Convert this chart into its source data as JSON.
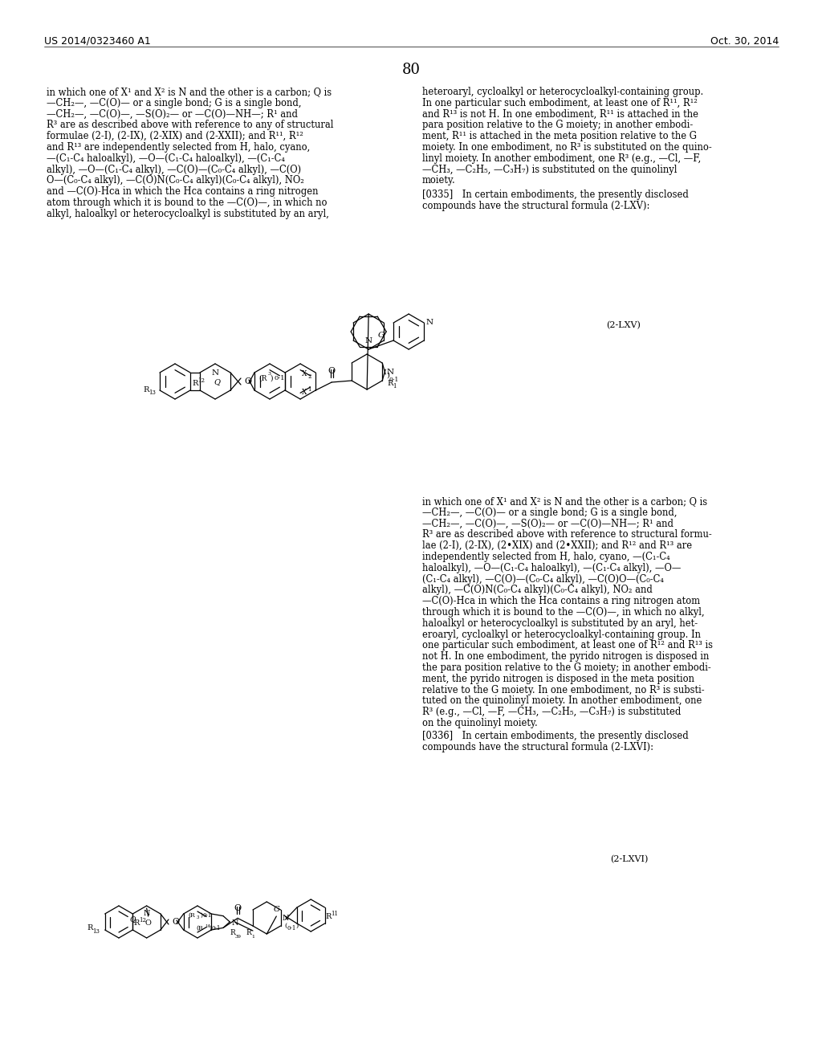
{
  "page_number": "80",
  "header_left": "US 2014/0323460 A1",
  "header_right": "Oct. 30, 2014",
  "background_color": "#ffffff",
  "left_col_text": [
    "in which one of X¹ and X² is N and the other is a carbon; Q is",
    "—CH₂—, —C(O)— or a single bond; G is a single bond,",
    "—CH₂—, —C(O)—, —S(O)₂— or —C(O)—NH—; R¹ and",
    "R³ are as described above with reference to any of structural",
    "formulae (2-I), (2-IX), (2-XIX) and (2-XXII); and R¹¹, R¹²",
    "and R¹³ are independently selected from H, halo, cyano,",
    "—(C₁-C₄ haloalkyl), —O—(C₁-C₄ haloalkyl), —(C₁-C₄",
    "alkyl), —O—(C₁-C₄ alkyl), —C(O)—(C₀-C₄ alkyl), —C(O)",
    "O—(C₀-C₄ alkyl), —C(O)N(C₀-C₄ alkyl)(C₀-C₄ alkyl), NO₂",
    "and —C(O)-Hca in which the Hca contains a ring nitrogen",
    "atom through which it is bound to the —C(O)—, in which no",
    "alkyl, haloalkyl or heterocycloalkyl is substituted by an aryl,"
  ],
  "right_col_text": [
    "heteroaryl, cycloalkyl or heterocycloalkyl-containing group.",
    "In one particular such embodiment, at least one of R¹¹, R¹²",
    "and R¹³ is not H. In one embodiment, R¹¹ is attached in the",
    "para position relative to the G moiety; in another embodi-",
    "ment, R¹¹ is attached in the meta position relative to the G",
    "moiety. In one embodiment, no R³ is substituted on the quino-",
    "linyl moiety. In another embodiment, one R³ (e.g., —Cl, —F,",
    "—CH₃, —C₂H₅, —C₃H₇) is substituted on the quinolinyl",
    "moiety."
  ],
  "paragraph_0335_1": "[0335] In certain embodiments, the presently disclosed",
  "paragraph_0335_2": "compounds have the structural formula (2-LXV):",
  "formula_label_1": "(2-LXV)",
  "right_col_lower": [
    "in which one of X¹ and X² is N and the other is a carbon; Q is",
    "—CH₂—, —C(O)— or a single bond; G is a single bond,",
    "—CH₂—, —C(O)—, —S(O)₂— or —C(O)—NH—; R¹ and",
    "R³ are as described above with reference to structural formu-",
    "lae (2-I), (2-IX), (2•XIX) and (2•XXII); and R¹² and R¹³ are",
    "independently selected from H, halo, cyano, —(C₁-C₄",
    "haloalkyl), —O—(C₁-C₄ haloalkyl), —(C₁-C₄ alkyl), —O—",
    "(C₁-C₄ alkyl), —C(O)—(C₀-C₄ alkyl), —C(O)O—(C₀-C₄",
    "alkyl), —C(O)N(C₀-C₄ alkyl)(C₀-C₄ alkyl), NO₂ and",
    "—C(O)-Hca in which the Hca contains a ring nitrogen atom",
    "through which it is bound to the —C(O)—, in which no alkyl,",
    "haloalkyl or heterocycloalkyl is substituted by an aryl, het-",
    "eroaryl, cycloalkyl or heterocycloalkyl-containing group. In",
    "one particular such embodiment, at least one of R¹² and R¹³ is"
  ],
  "right_col_lower2": [
    "not H. In one embodiment, the pyrido nitrogen is disposed in",
    "the para position relative to the G moiety; in another embodi-",
    "ment, the pyrido nitrogen is disposed in the meta position",
    "relative to the G moiety. In one embodiment, no R³ is substi-",
    "tuted on the quinolinyl moiety. In another embodiment, one",
    "R³ (e.g., —Cl, —F, —CH₃, —C₂H₅, —C₃H₇) is substituted",
    "on the quinolinyl moiety."
  ],
  "paragraph_0336_1": "[0336] In certain embodiments, the presently disclosed",
  "paragraph_0336_2": "compounds have the structural formula (2-LXVI):",
  "formula_label_2": "(2-LXVI)"
}
